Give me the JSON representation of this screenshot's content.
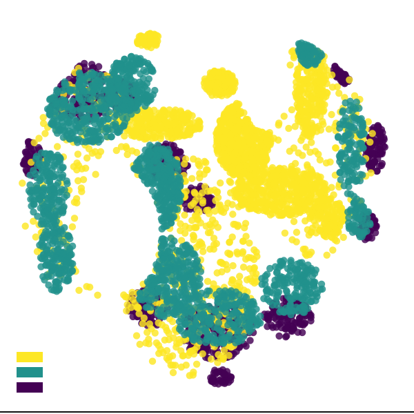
{
  "chart_data": {
    "type": "scatter",
    "title": "",
    "xlabel": "",
    "ylabel": "",
    "grid": false,
    "axes_visible": false,
    "xlim": [
      -1.0,
      1.0
    ],
    "ylim": [
      -1.0,
      1.0
    ],
    "legend": {
      "placement": "bottom-left",
      "labels_visible": false
    },
    "series": [
      {
        "color": "#fde725",
        "order": 1,
        "regions": [
          {
            "cx": 0.06,
            "cy": 0.62,
            "rx": 0.08,
            "ry": 0.07,
            "n": 140
          },
          {
            "cx": 0.18,
            "cy": 0.34,
            "rx": 0.14,
            "ry": 0.19,
            "n": 520
          },
          {
            "cx": 0.37,
            "cy": 0.08,
            "rx": 0.24,
            "ry": 0.12,
            "n": 420
          },
          {
            "cx": 0.52,
            "cy": 0.58,
            "rx": 0.08,
            "ry": 0.24,
            "n": 230
          },
          {
            "cx": 0.6,
            "cy": -0.05,
            "rx": 0.09,
            "ry": 0.1,
            "n": 120
          },
          {
            "cx": -0.25,
            "cy": 0.42,
            "rx": 0.22,
            "ry": 0.08,
            "n": 260
          },
          {
            "cx": -0.6,
            "cy": -0.02,
            "rx": 0.05,
            "ry": 0.05,
            "n": 60
          },
          {
            "cx": -0.3,
            "cy": 0.84,
            "rx": 0.06,
            "ry": 0.04,
            "n": 50
          },
          {
            "cx": -0.62,
            "cy": 0.14,
            "rx": 0.32,
            "ry": 0.6,
            "n": 150
          },
          {
            "cx": -0.1,
            "cy": -0.3,
            "rx": 0.35,
            "ry": 0.55,
            "n": 420
          },
          {
            "cx": 0.55,
            "cy": 0.3,
            "rx": 0.28,
            "ry": 0.55,
            "n": 200
          }
        ]
      },
      {
        "color": "#21918c",
        "order": 2,
        "regions": [
          {
            "cx": -0.6,
            "cy": 0.5,
            "rx": 0.22,
            "ry": 0.18,
            "n": 320
          },
          {
            "cx": -0.8,
            "cy": 0.1,
            "rx": 0.1,
            "ry": 0.2,
            "n": 180
          },
          {
            "cx": -0.76,
            "cy": -0.25,
            "rx": 0.09,
            "ry": 0.17,
            "n": 150
          },
          {
            "cx": -0.38,
            "cy": 0.62,
            "rx": 0.12,
            "ry": 0.14,
            "n": 180
          },
          {
            "cx": -0.26,
            "cy": 0.1,
            "rx": 0.13,
            "ry": 0.22,
            "n": 260
          },
          {
            "cx": -0.2,
            "cy": -0.35,
            "rx": 0.17,
            "ry": 0.2,
            "n": 260
          },
          {
            "cx": 0.05,
            "cy": -0.55,
            "rx": 0.22,
            "ry": 0.14,
            "n": 240
          },
          {
            "cx": 0.42,
            "cy": -0.4,
            "rx": 0.16,
            "ry": 0.14,
            "n": 170
          },
          {
            "cx": 0.52,
            "cy": 0.8,
            "rx": 0.07,
            "ry": 0.09,
            "n": 80
          },
          {
            "cx": 0.72,
            "cy": 0.3,
            "rx": 0.07,
            "ry": 0.25,
            "n": 130
          },
          {
            "cx": 0.76,
            "cy": -0.05,
            "rx": 0.06,
            "ry": 0.1,
            "n": 60
          }
        ]
      },
      {
        "color": "#440154",
        "order": 0,
        "regions": [
          {
            "cx": -0.62,
            "cy": 0.58,
            "rx": 0.18,
            "ry": 0.15,
            "n": 180
          },
          {
            "cx": -0.88,
            "cy": 0.25,
            "rx": 0.05,
            "ry": 0.09,
            "n": 60
          },
          {
            "cx": -0.42,
            "cy": 0.56,
            "rx": 0.07,
            "ry": 0.08,
            "n": 70
          },
          {
            "cx": -0.2,
            "cy": 0.22,
            "rx": 0.1,
            "ry": 0.1,
            "n": 90
          },
          {
            "cx": -0.05,
            "cy": 0.04,
            "rx": 0.08,
            "ry": 0.07,
            "n": 60
          },
          {
            "cx": -0.3,
            "cy": -0.5,
            "rx": 0.1,
            "ry": 0.1,
            "n": 100
          },
          {
            "cx": 0.05,
            "cy": -0.62,
            "rx": 0.18,
            "ry": 0.14,
            "n": 200
          },
          {
            "cx": 0.4,
            "cy": -0.55,
            "rx": 0.12,
            "ry": 0.1,
            "n": 120
          },
          {
            "cx": 0.68,
            "cy": 0.7,
            "rx": 0.05,
            "ry": 0.08,
            "n": 50
          },
          {
            "cx": 0.84,
            "cy": 0.3,
            "rx": 0.05,
            "ry": 0.12,
            "n": 80
          },
          {
            "cx": 0.8,
            "cy": -0.1,
            "rx": 0.05,
            "ry": 0.07,
            "n": 50
          },
          {
            "cx": 0.06,
            "cy": -0.85,
            "rx": 0.06,
            "ry": 0.04,
            "n": 40
          }
        ]
      }
    ]
  }
}
